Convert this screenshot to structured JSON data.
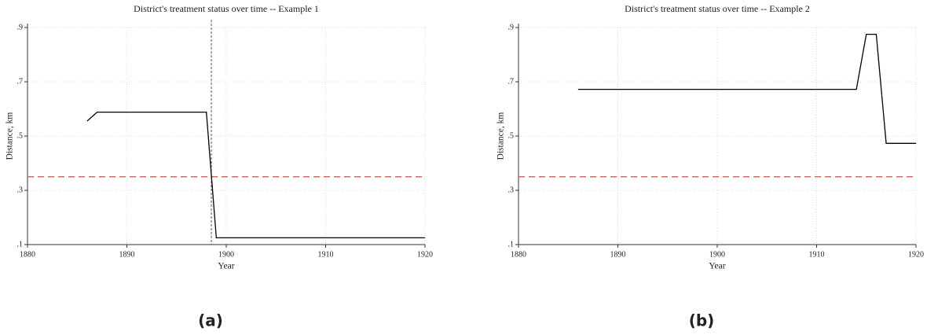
{
  "chart_data": [
    {
      "type": "line",
      "title": "District's treatment status over time -- Example 1",
      "xlabel": "Year",
      "ylabel": "Distance, km",
      "caption": "(a)",
      "x": [
        1886,
        1887,
        1898,
        1899,
        1920
      ],
      "values": [
        0.555,
        0.588,
        0.588,
        0.125,
        0.125
      ],
      "color": "#000000",
      "xlim": [
        1880,
        1920
      ],
      "xticks": [
        1880,
        1890,
        1900,
        1910,
        1920
      ],
      "ylim": [
        0.1,
        0.9
      ],
      "yticks": [
        {
          "value": 0.1,
          "label": ".1"
        },
        {
          "value": 0.3,
          "label": ".3"
        },
        {
          "value": 0.5,
          "label": ".5"
        },
        {
          "value": 0.7,
          "label": ".7"
        },
        {
          "value": 0.9,
          "label": ".9"
        }
      ],
      "grid": true,
      "hline": {
        "value": 0.35,
        "color": "#e8605f"
      },
      "vline": {
        "value": 1898.5,
        "color": "#555555"
      }
    },
    {
      "type": "line",
      "title": "District's treatment status over time -- Example 2",
      "xlabel": "Year",
      "ylabel": "Distance, km",
      "caption": "(b)",
      "x": [
        1886,
        1914,
        1915,
        1916,
        1917,
        1920
      ],
      "values": [
        0.672,
        0.672,
        0.875,
        0.875,
        0.473,
        0.473
      ],
      "color": "#000000",
      "xlim": [
        1880,
        1920
      ],
      "xticks": [
        1880,
        1890,
        1900,
        1910,
        1920
      ],
      "ylim": [
        0.1,
        0.9
      ],
      "yticks": [
        {
          "value": 0.1,
          "label": ".1"
        },
        {
          "value": 0.3,
          "label": ".3"
        },
        {
          "value": 0.5,
          "label": ".5"
        },
        {
          "value": 0.7,
          "label": ".7"
        },
        {
          "value": 0.9,
          "label": ".9"
        }
      ],
      "grid": true,
      "hline": {
        "value": 0.35,
        "color": "#e8605f"
      }
    }
  ]
}
